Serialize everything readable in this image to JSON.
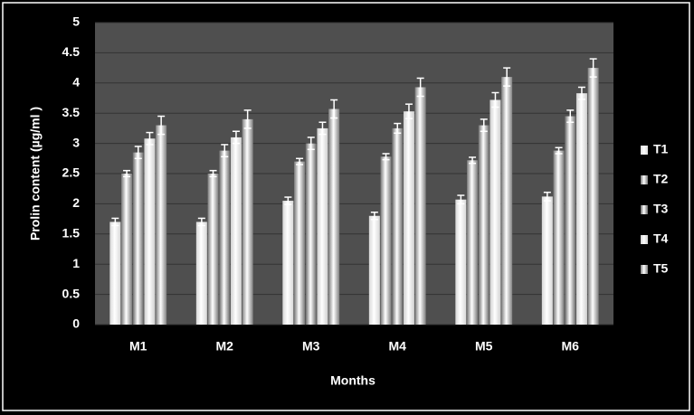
{
  "chart_data": {
    "type": "bar",
    "x_label": "Months",
    "y_label": "Prolin content (µg/ml )",
    "categories": [
      "M1",
      "M2",
      "M3",
      "M4",
      "M5",
      "M6"
    ],
    "series": [
      {
        "name": "T1",
        "color": "#d8d8d8",
        "values": [
          1.7,
          1.7,
          2.05,
          1.8,
          2.07,
          2.12
        ],
        "errors": [
          0.06,
          0.06,
          0.06,
          0.06,
          0.07,
          0.07
        ]
      },
      {
        "name": "T2",
        "color": "#7a7a7a",
        "values": [
          2.5,
          2.5,
          2.7,
          2.78,
          2.72,
          2.88
        ],
        "errors": [
          0.05,
          0.05,
          0.05,
          0.05,
          0.05,
          0.05
        ]
      },
      {
        "name": "T3",
        "color": "#6a6a6a",
        "values": [
          2.85,
          2.88,
          3.0,
          3.25,
          3.3,
          3.45
        ],
        "errors": [
          0.1,
          0.1,
          0.1,
          0.08,
          0.1,
          0.1
        ]
      },
      {
        "name": "T4",
        "color": "#cfcfcf",
        "values": [
          3.08,
          3.1,
          3.25,
          3.53,
          3.72,
          3.83
        ],
        "errors": [
          0.1,
          0.1,
          0.1,
          0.12,
          0.12,
          0.1
        ]
      },
      {
        "name": "T5",
        "color": "#808080",
        "values": [
          3.3,
          3.4,
          3.57,
          3.93,
          4.1,
          4.25
        ],
        "errors": [
          0.15,
          0.15,
          0.15,
          0.15,
          0.15,
          0.15
        ]
      }
    ],
    "ylim": [
      0,
      5
    ],
    "yticks": [
      0,
      0.5,
      1,
      1.5,
      2,
      2.5,
      3,
      3.5,
      4,
      4.5,
      5
    ],
    "grid": true,
    "legend": "right"
  }
}
